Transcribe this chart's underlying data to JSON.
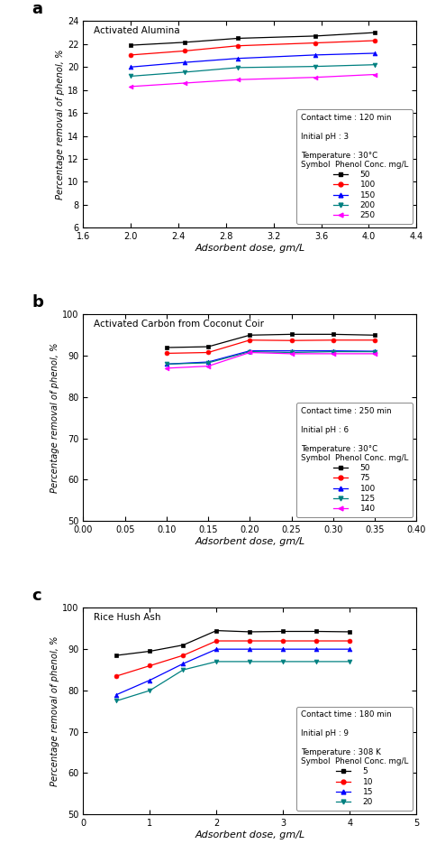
{
  "panel_a": {
    "title": "Activated Alumina",
    "xlabel": "Adsorbent dose, gm/L",
    "ylabel": "Percentage removal of phenol, %",
    "xlim": [
      1.6,
      4.4
    ],
    "ylim": [
      6,
      24
    ],
    "yticks": [
      6,
      8,
      10,
      12,
      14,
      16,
      18,
      20,
      22,
      24
    ],
    "xticks": [
      1.6,
      2.0,
      2.4,
      2.8,
      3.2,
      3.6,
      4.0,
      4.4
    ],
    "xtick_labels": [
      "1.6",
      "2.0",
      "2.4",
      "2.8",
      "3.2",
      "3.6",
      "4.0",
      "4.4"
    ],
    "legend_lines": [
      "Contact time : 120 min",
      "",
      "Initial pH : 3",
      "",
      "Temperature : 30°C",
      "Symbol  Phenol Conc. mg/L"
    ],
    "legend_labels": [
      "50",
      "100",
      "150",
      "200",
      "250"
    ],
    "series": [
      {
        "x": [
          2.0,
          2.45,
          2.9,
          3.55,
          4.05
        ],
        "y": [
          21.9,
          22.15,
          22.5,
          22.7,
          23.0
        ],
        "color": "#000000",
        "marker": "s",
        "label": "50"
      },
      {
        "x": [
          2.0,
          2.45,
          2.9,
          3.55,
          4.05
        ],
        "y": [
          21.05,
          21.4,
          21.85,
          22.1,
          22.3
        ],
        "color": "#ff0000",
        "marker": "o",
        "label": "100"
      },
      {
        "x": [
          2.0,
          2.45,
          2.9,
          3.55,
          4.05
        ],
        "y": [
          20.0,
          20.4,
          20.75,
          21.05,
          21.2
        ],
        "color": "#0000ff",
        "marker": "^",
        "label": "150"
      },
      {
        "x": [
          2.0,
          2.45,
          2.9,
          3.55,
          4.05
        ],
        "y": [
          19.2,
          19.55,
          19.95,
          20.05,
          20.2
        ],
        "color": "#008080",
        "marker": "v",
        "label": "200"
      },
      {
        "x": [
          2.0,
          2.45,
          2.9,
          3.55,
          4.05
        ],
        "y": [
          18.3,
          18.6,
          18.9,
          19.1,
          19.35
        ],
        "color": "#ff00ff",
        "marker": "<",
        "label": "250"
      }
    ]
  },
  "panel_b": {
    "title": "Activated Carbon from Coconut Coir",
    "xlabel": "Adsorbent dose, gm/L",
    "ylabel": "Percentage removal of phenol, %",
    "xlim": [
      0.0,
      0.4
    ],
    "ylim": [
      50,
      100
    ],
    "yticks": [
      50,
      60,
      70,
      80,
      90,
      100
    ],
    "xticks": [
      0.0,
      0.05,
      0.1,
      0.15,
      0.2,
      0.25,
      0.3,
      0.35,
      0.4
    ],
    "xtick_labels": [
      "0.00",
      "0.05",
      "0.10",
      "0.15",
      "0.20",
      "0.25",
      "0.30",
      "0.35",
      "0.40"
    ],
    "legend_lines": [
      "Contact time : 250 min",
      "",
      "Initial pH : 6",
      "",
      "Temperature : 30°C",
      "Symbol  Phenol Conc. mg/L"
    ],
    "legend_labels": [
      "50",
      "75",
      "100",
      "125",
      "140"
    ],
    "series": [
      {
        "x": [
          0.1,
          0.15,
          0.2,
          0.25,
          0.3,
          0.35
        ],
        "y": [
          92.0,
          92.2,
          95.0,
          95.2,
          95.2,
          95.0
        ],
        "color": "#000000",
        "marker": "s",
        "label": "50"
      },
      {
        "x": [
          0.1,
          0.15,
          0.2,
          0.25,
          0.3,
          0.35
        ],
        "y": [
          90.6,
          90.8,
          93.8,
          93.7,
          93.8,
          93.8
        ],
        "color": "#ff0000",
        "marker": "o",
        "label": "75"
      },
      {
        "x": [
          0.1,
          0.15,
          0.2,
          0.25,
          0.3,
          0.35
        ],
        "y": [
          88.0,
          88.5,
          91.2,
          91.2,
          91.2,
          91.1
        ],
        "color": "#0000ff",
        "marker": "^",
        "label": "100"
      },
      {
        "x": [
          0.1,
          0.15,
          0.2,
          0.25,
          0.3,
          0.35
        ],
        "y": [
          88.0,
          88.3,
          91.0,
          90.8,
          91.0,
          91.0
        ],
        "color": "#008080",
        "marker": "v",
        "label": "125"
      },
      {
        "x": [
          0.1,
          0.15,
          0.2,
          0.25,
          0.3,
          0.35
        ],
        "y": [
          87.0,
          87.5,
          90.8,
          90.5,
          90.5,
          90.5
        ],
        "color": "#ff00ff",
        "marker": "<",
        "label": "140"
      }
    ]
  },
  "panel_c": {
    "title": "Rice Hush Ash",
    "xlabel": "Adsorbent dose, gm/L",
    "ylabel": "Percentage removal of phenol, %",
    "xlim": [
      0,
      5
    ],
    "ylim": [
      50,
      100
    ],
    "yticks": [
      50,
      60,
      70,
      80,
      90,
      100
    ],
    "xticks": [
      0,
      1,
      2,
      3,
      4,
      5
    ],
    "xtick_labels": [
      "0",
      "1",
      "2",
      "3",
      "4",
      "5"
    ],
    "legend_lines": [
      "Contact time : 180 min",
      "",
      "Initial pH : 9",
      "",
      "Temperature : 308 K",
      "Symbol  Phenol Conc. mg/L"
    ],
    "legend_labels": [
      "5",
      "10",
      "15",
      "20"
    ],
    "series": [
      {
        "x": [
          0.5,
          1.0,
          1.5,
          2.0,
          2.5,
          3.0,
          3.5,
          4.0
        ],
        "y": [
          88.5,
          89.5,
          91.0,
          94.5,
          94.2,
          94.3,
          94.3,
          94.2
        ],
        "color": "#000000",
        "marker": "s",
        "label": "5"
      },
      {
        "x": [
          0.5,
          1.0,
          1.5,
          2.0,
          2.5,
          3.0,
          3.5,
          4.0
        ],
        "y": [
          83.5,
          86.0,
          88.5,
          92.0,
          92.0,
          92.0,
          92.0,
          92.0
        ],
        "color": "#ff0000",
        "marker": "o",
        "label": "10"
      },
      {
        "x": [
          0.5,
          1.0,
          1.5,
          2.0,
          2.5,
          3.0,
          3.5,
          4.0
        ],
        "y": [
          79.0,
          82.5,
          86.5,
          90.0,
          90.0,
          90.0,
          90.0,
          90.0
        ],
        "color": "#0000ff",
        "marker": "^",
        "label": "15"
      },
      {
        "x": [
          0.5,
          1.0,
          1.5,
          2.0,
          2.5,
          3.0,
          3.5,
          4.0
        ],
        "y": [
          77.5,
          80.0,
          85.0,
          87.0,
          87.0,
          87.0,
          87.0,
          87.0
        ],
        "color": "#008080",
        "marker": "v",
        "label": "20"
      }
    ]
  }
}
